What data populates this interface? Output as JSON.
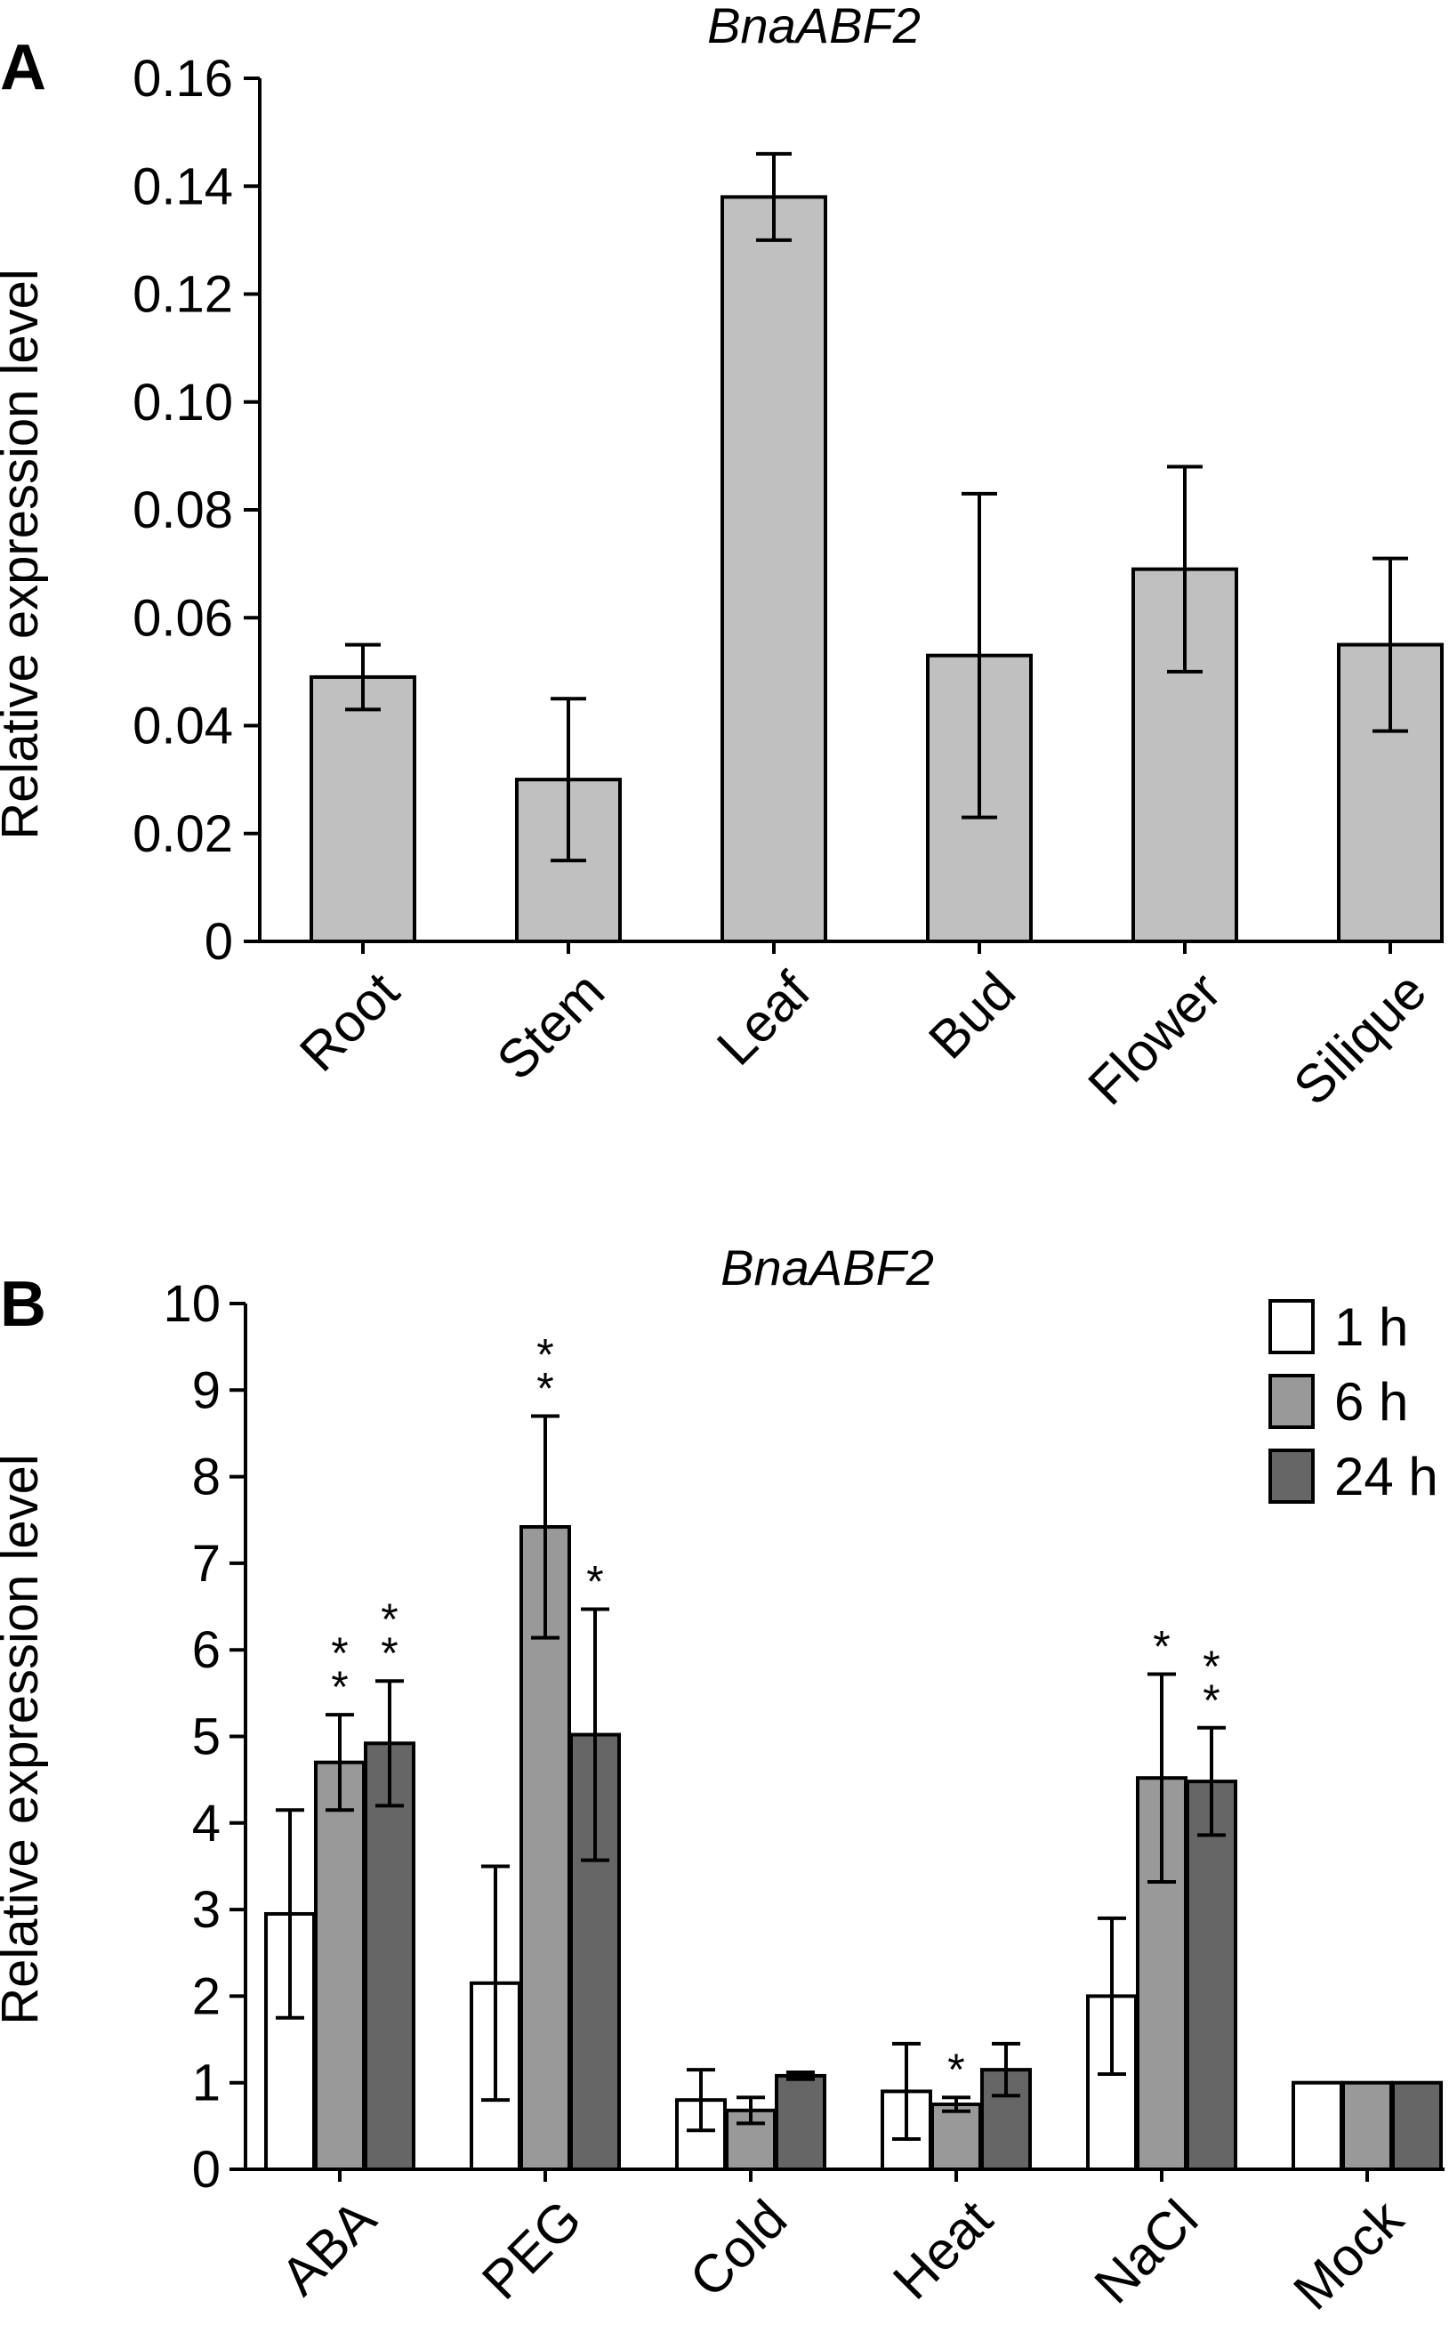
{
  "chart_data": [
    {
      "panel": "A",
      "type": "bar",
      "title": "BnaABF2",
      "ylabel": "Relative expression level",
      "xlabel": "",
      "ylim": [
        0,
        0.16
      ],
      "yticks": [
        "0",
        "0.02",
        "0.04",
        "0.06",
        "0.08",
        "0.10",
        "0.12",
        "0.14",
        "0.16"
      ],
      "yticks_values": [
        0,
        0.02,
        0.04,
        0.06,
        0.08,
        0.1,
        0.12,
        0.14,
        0.16
      ],
      "categories": [
        "Root",
        "Stem",
        "Leaf",
        "Bud",
        "Flower",
        "Silique"
      ],
      "values": [
        0.049,
        0.03,
        0.138,
        0.053,
        0.069,
        0.055
      ],
      "errors": [
        0.006,
        0.015,
        0.008,
        0.03,
        0.019,
        0.016
      ],
      "bar_color": "#c0c0c0",
      "grid": false,
      "legend": "none"
    },
    {
      "panel": "B",
      "type": "bar",
      "title": "BnaABF2",
      "ylabel": "Relative expression level",
      "xlabel": "",
      "ylim": [
        0,
        10
      ],
      "yticks": [
        "0",
        "1",
        "2",
        "3",
        "4",
        "5",
        "6",
        "7",
        "8",
        "9",
        "10"
      ],
      "yticks_values": [
        0,
        1,
        2,
        3,
        4,
        5,
        6,
        7,
        8,
        9,
        10
      ],
      "categories": [
        "ABA",
        "PEG",
        "Cold",
        "Heat",
        "NaCl",
        "Mock"
      ],
      "series": [
        {
          "name": "1 h",
          "color": "#ffffff",
          "values": [
            2.95,
            2.15,
            0.8,
            0.9,
            2.0,
            1.0
          ],
          "errors": [
            1.2,
            1.35,
            0.35,
            0.55,
            0.9,
            0.0
          ],
          "significance": [
            "",
            "",
            "",
            "",
            "",
            ""
          ]
        },
        {
          "name": "6 h",
          "color": "#999999",
          "values": [
            4.7,
            7.42,
            0.68,
            0.75,
            4.52,
            1.0
          ],
          "errors": [
            0.55,
            1.28,
            0.15,
            0.08,
            1.2,
            0.0
          ],
          "significance": [
            "**",
            "**",
            "",
            "*",
            "*",
            ""
          ]
        },
        {
          "name": "24 h",
          "color": "#666666",
          "values": [
            4.92,
            5.02,
            1.08,
            1.15,
            4.48,
            1.0
          ],
          "errors": [
            0.72,
            1.45,
            0.04,
            0.3,
            0.62,
            0.0
          ],
          "significance": [
            "**",
            "*",
            "",
            "",
            "**",
            ""
          ]
        }
      ],
      "grid": false,
      "legend": "top-right"
    }
  ]
}
